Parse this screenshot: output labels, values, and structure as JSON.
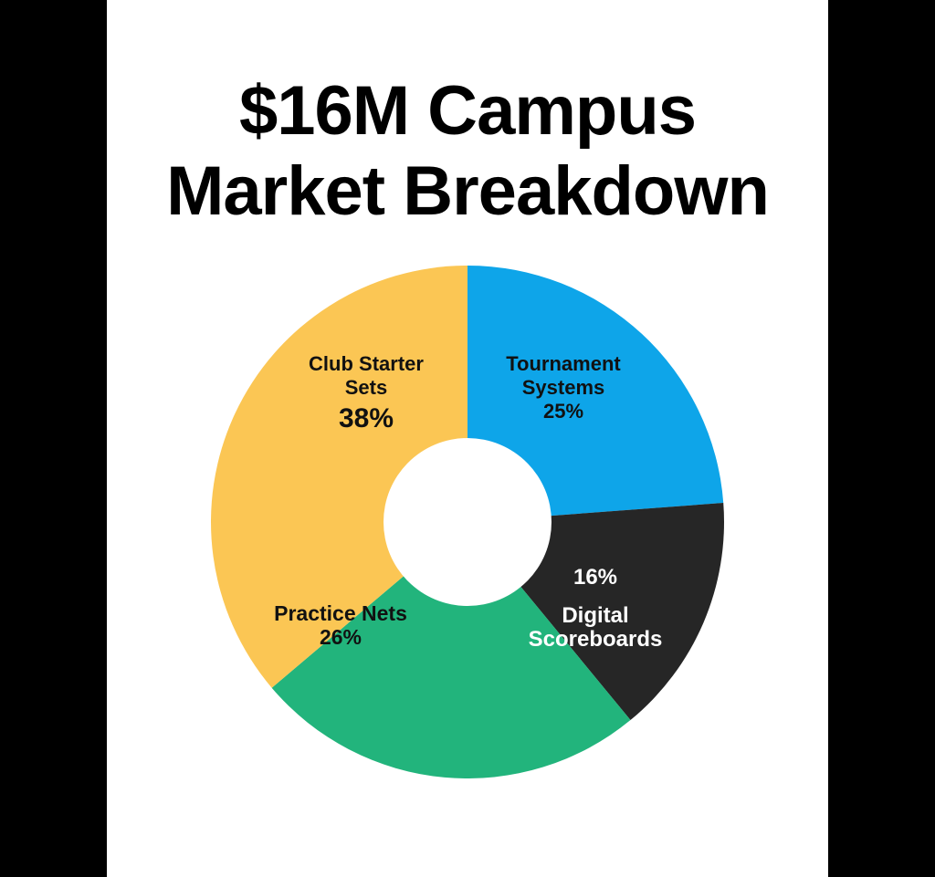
{
  "title_lines": [
    "$16M Campus",
    "Market Breakdown"
  ],
  "colors": {
    "background": "#ffffff",
    "frame": "#000000",
    "title": "#000000"
  },
  "chart_data": {
    "type": "pie",
    "donut": true,
    "title": "$16M Campus Market Breakdown",
    "slices": [
      {
        "label_lines": [
          "Tournament",
          "Systems"
        ],
        "value_label": "25%",
        "value": 25,
        "color": "#0ea5e9",
        "text_color": "#111111"
      },
      {
        "label_lines": [
          "Digital",
          "Scoreboards"
        ],
        "value_label": "16%",
        "value": 16,
        "color": "#262626",
        "text_color": "#ffffff"
      },
      {
        "label_lines": [
          "Practice Nets"
        ],
        "value_label": "26%",
        "value": 26,
        "color": "#22b47c",
        "text_color": "#111111"
      },
      {
        "label_lines": [
          "Club Starter",
          "Sets"
        ],
        "value_label": "38%",
        "value": 38,
        "color": "#fbc654",
        "text_color": "#111111"
      }
    ],
    "legend": "none"
  }
}
